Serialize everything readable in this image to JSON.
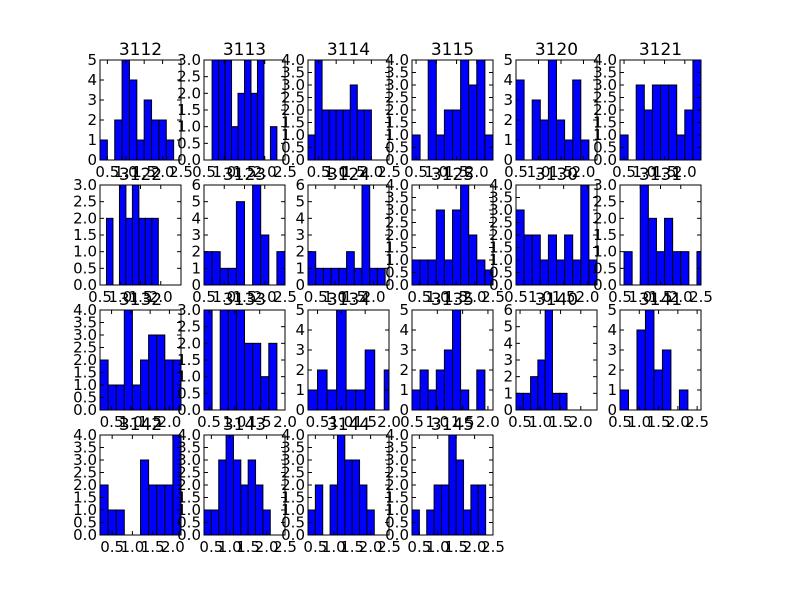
{
  "figure": {
    "bar_color": "#0000ff",
    "edge_color": "#000000",
    "background": "#ffffff"
  },
  "chart_data": [
    {
      "type": "bar",
      "title": "3112",
      "bin_edges": [
        0.3,
        0.5,
        0.7,
        0.9,
        1.1,
        1.3,
        1.5,
        1.7,
        1.9,
        2.1,
        2.3
      ],
      "values": [
        1,
        0,
        2,
        5,
        4,
        1,
        3,
        2,
        2,
        1
      ],
      "ylim": [
        0,
        5
      ],
      "yticks": [
        "0",
        "1",
        "2",
        "3",
        "4",
        "5"
      ],
      "xticks": [
        0.5,
        1.0,
        1.5,
        2.0,
        2.5
      ],
      "xlim": [
        0.3,
        2.5
      ],
      "xtick_text": [
        "0.5",
        "1.0",
        "1.5",
        "2.0",
        "2.5"
      ]
    },
    {
      "type": "bar",
      "title": "3113",
      "bin_edges": [
        0.7,
        0.86,
        1.02,
        1.18,
        1.34,
        1.5,
        1.66,
        1.82,
        1.98,
        2.14,
        2.3
      ],
      "values": [
        3,
        3,
        3,
        1,
        2,
        3,
        2,
        3,
        0,
        1
      ],
      "ylim": [
        0,
        3
      ],
      "yticks": [
        "0.0",
        "0.5",
        "1.0",
        "1.5",
        "2.0",
        "2.5",
        "3.0"
      ],
      "xticks": [
        0.5,
        1.0,
        1.5,
        2.0,
        2.5
      ],
      "xlim": [
        0.5,
        2.5
      ],
      "xtick_text": [
        "0.5",
        "1.0",
        "1.5",
        "2.0",
        "2.5"
      ]
    },
    {
      "type": "bar",
      "title": "3114",
      "bin_edges": [
        0.2,
        0.4,
        0.6,
        0.8,
        1.0,
        1.2,
        1.4,
        1.6,
        1.8,
        2.0,
        2.2
      ],
      "values": [
        1,
        4,
        2,
        2,
        2,
        2,
        3,
        2,
        2,
        0
      ],
      "ylim": [
        0,
        4
      ],
      "yticks": [
        "0.0",
        "0.5",
        "1.0",
        "1.5",
        "2.0",
        "2.5",
        "3.0",
        "3.5",
        "4.0"
      ],
      "xticks": [
        0.5,
        1.0,
        1.5,
        2.0,
        2.5
      ],
      "xlim": [
        0.2,
        2.5
      ],
      "xtick_text": [
        "0.5",
        "1.0",
        "1.5",
        "2.0",
        "2.5"
      ]
    },
    {
      "type": "bar",
      "title": "3115",
      "bin_edges": [
        0.4,
        0.6,
        0.8,
        1.0,
        1.2,
        1.4,
        1.6,
        1.8,
        2.0,
        2.2,
        2.4
      ],
      "values": [
        1,
        0,
        4,
        1,
        2,
        2,
        4,
        3,
        4,
        1
      ],
      "ylim": [
        0,
        4
      ],
      "yticks": [
        "0.0",
        "0.5",
        "1.0",
        "1.5",
        "2.0",
        "2.5",
        "3.0",
        "3.5",
        "4.0"
      ],
      "xticks": [
        0.5,
        1.0,
        1.5,
        2.0,
        2.5
      ],
      "xlim": [
        0.4,
        2.4
      ],
      "xtick_text": [
        "0.5",
        "1.0",
        "1.5",
        "2.0",
        "2.5"
      ]
    },
    {
      "type": "bar",
      "title": "3120",
      "bin_edges": [
        0.5,
        0.68,
        0.86,
        1.04,
        1.22,
        1.4,
        1.58,
        1.76,
        1.94,
        2.12,
        2.3
      ],
      "values": [
        4,
        0,
        3,
        2,
        5,
        2,
        1,
        4,
        1,
        0
      ],
      "ylim": [
        0,
        5
      ],
      "yticks": [
        "0",
        "1",
        "2",
        "3",
        "4",
        "5"
      ],
      "xticks": [
        0.5,
        1.0,
        1.5,
        2.0,
        2.5
      ],
      "xlim": [
        0.5,
        2.3
      ],
      "xtick_text": [
        "0.5",
        "1.0",
        "1.5",
        "2.0",
        "2.5"
      ]
    },
    {
      "type": "bar",
      "title": "3121",
      "bin_edges": [
        0.4,
        0.6,
        0.8,
        1.0,
        1.2,
        1.4,
        1.6,
        1.8,
        2.0,
        2.2,
        2.4
      ],
      "values": [
        1,
        0,
        3,
        2,
        3,
        3,
        3,
        1,
        2,
        4
      ],
      "ylim": [
        0,
        4
      ],
      "yticks": [
        "0.0",
        "0.5",
        "1.0",
        "1.5",
        "2.0",
        "2.5",
        "3.0",
        "3.5",
        "4.0"
      ],
      "xticks": [
        0.5,
        1.0,
        1.5,
        2.0,
        2.5
      ],
      "xlim": [
        0.4,
        2.4
      ],
      "xtick_text": [
        "0.5",
        "1.0",
        "1.5",
        "2.0",
        "2.5"
      ]
    },
    {
      "type": "bar",
      "title": "3122",
      "bin_edges": [
        0.5,
        0.66,
        0.82,
        0.98,
        1.14,
        1.3,
        1.46,
        1.62,
        1.78,
        1.94,
        2.1
      ],
      "values": [
        0,
        2,
        0,
        3,
        2,
        3,
        2,
        2,
        2,
        0
      ],
      "ylim": [
        0,
        3
      ],
      "yticks": [
        "0.0",
        "0.5",
        "1.0",
        "1.5",
        "2.0",
        "2.5",
        "3.0"
      ],
      "xticks": [
        0.5,
        1.0,
        1.5,
        2.0
      ],
      "xlim": [
        0.5,
        2.5
      ],
      "xtick_text": [
        "0.5",
        "1.0",
        "1.5",
        "2.0"
      ]
    },
    {
      "type": "bar",
      "title": "3123",
      "bin_edges": [
        0.5,
        0.7,
        0.9,
        1.1,
        1.3,
        1.5,
        1.7,
        1.9,
        2.1,
        2.3,
        2.5
      ],
      "values": [
        2,
        2,
        1,
        1,
        5,
        0,
        6,
        3,
        0,
        2
      ],
      "ylim": [
        0,
        6
      ],
      "yticks": [
        "0",
        "1",
        "2",
        "3",
        "4",
        "5",
        "6"
      ],
      "xticks": [
        0.5,
        1.0,
        1.5,
        2.0,
        2.5
      ],
      "xlim": [
        0.5,
        2.5
      ],
      "xtick_text": [
        "0.5",
        "1.0",
        "1.5",
        "2.0",
        "2.5"
      ]
    },
    {
      "type": "bar",
      "title": "3124",
      "bin_edges": [
        0.3,
        0.5,
        0.7,
        0.9,
        1.1,
        1.3,
        1.5,
        1.7,
        1.9,
        2.1,
        2.3
      ],
      "values": [
        2,
        1,
        1,
        1,
        1,
        2,
        1,
        6,
        1,
        1
      ],
      "ylim": [
        0,
        6
      ],
      "yticks": [
        "0",
        "1",
        "2",
        "3",
        "4",
        "5",
        "6"
      ],
      "xticks": [
        0.5,
        1.0,
        1.5,
        2.0,
        2.5
      ],
      "xlim": [
        0.3,
        2.4
      ],
      "xtick_text": [
        "0.5",
        "1.0",
        "1.5",
        "2.0",
        "2.5"
      ]
    },
    {
      "type": "bar",
      "title": "3125",
      "bin_edges": [
        0.3,
        0.52,
        0.74,
        0.96,
        1.18,
        1.4,
        1.62,
        1.84,
        2.06,
        2.28,
        2.5
      ],
      "values": [
        1,
        1,
        1,
        3,
        1,
        3,
        4,
        2,
        1,
        0.6
      ],
      "ylim": [
        0,
        4
      ],
      "yticks": [
        "0.0",
        "0.5",
        "1.0",
        "1.5",
        "2.0",
        "2.5",
        "3.0",
        "3.5",
        "4.0"
      ],
      "xticks": [
        0.5,
        1.0,
        1.5,
        2.0,
        2.5
      ],
      "xlim": [
        0.3,
        2.5
      ],
      "xtick_text": [
        "0.5",
        "1.0",
        "1.5",
        "2.0",
        "2.5"
      ]
    },
    {
      "type": "bar",
      "title": "3130",
      "bin_edges": [
        0.5,
        0.67,
        0.84,
        1.01,
        1.18,
        1.35,
        1.52,
        1.69,
        1.86,
        2.03,
        2.2
      ],
      "values": [
        3,
        2,
        2,
        1,
        2,
        1,
        2,
        1,
        4,
        1
      ],
      "ylim": [
        0,
        4
      ],
      "yticks": [
        "0.0",
        "0.5",
        "1.0",
        "1.5",
        "2.0",
        "2.5",
        "3.0",
        "3.5",
        "4.0"
      ],
      "xticks": [
        0.5,
        1.0,
        1.5,
        2.0,
        2.5
      ],
      "xlim": [
        0.5,
        2.2
      ],
      "xtick_text": [
        "0.5",
        "1.0",
        "1.5",
        "2.0",
        "2.5"
      ]
    },
    {
      "type": "bar",
      "title": "3131",
      "bin_edges": [
        0.6,
        0.8,
        1.0,
        1.2,
        1.4,
        1.6,
        1.8,
        2.0,
        2.2,
        2.4,
        2.6
      ],
      "values": [
        1,
        0,
        3,
        2,
        1,
        2,
        1,
        1,
        0,
        1
      ],
      "ylim": [
        0,
        3
      ],
      "yticks": [
        "0.0",
        "0.5",
        "1.0",
        "1.5",
        "2.0",
        "2.5",
        "3.0"
      ],
      "xticks": [
        0.5,
        1.0,
        1.5,
        2.0,
        2.5
      ],
      "xlim": [
        0.5,
        2.5
      ],
      "xtick_text": [
        "0.5",
        "1.0",
        "1.5",
        "2.0",
        "2.5"
      ]
    },
    {
      "type": "bar",
      "title": "3132",
      "bin_edges": [
        0.2,
        0.41,
        0.62,
        0.83,
        1.04,
        1.25,
        1.46,
        1.67,
        1.88,
        2.09,
        2.3
      ],
      "values": [
        2,
        1,
        1,
        4,
        1,
        2,
        3,
        3,
        2,
        2
      ],
      "ylim": [
        0,
        4
      ],
      "yticks": [
        "0.0",
        "0.5",
        "1.0",
        "1.5",
        "2.0",
        "2.5",
        "3.0",
        "3.5",
        "4.0"
      ],
      "xticks": [
        0.5,
        1.0,
        1.5,
        2.0,
        2.5
      ],
      "xlim": [
        0.2,
        2.3
      ],
      "xtick_text": [
        "0.5",
        "1.0",
        "1.5",
        "2.0",
        "2.5"
      ]
    },
    {
      "type": "bar",
      "title": "3133",
      "bin_edges": [
        0.4,
        0.56,
        0.72,
        0.88,
        1.04,
        1.2,
        1.36,
        1.52,
        1.68,
        1.84,
        2.0
      ],
      "values": [
        3,
        0,
        3,
        3,
        3,
        2,
        2,
        1,
        2,
        0
      ],
      "ylim": [
        0,
        3
      ],
      "yticks": [
        "0.0",
        "0.5",
        "1.0",
        "1.5",
        "2.0",
        "2.5",
        "3.0"
      ],
      "xticks": [
        0.5,
        1.0,
        1.5,
        2.0,
        2.5
      ],
      "xlim": [
        0.4,
        2.0
      ],
      "xtick_text": [
        "0.5",
        "1.0",
        "1.5",
        "2.0",
        "2.5"
      ]
    },
    {
      "type": "bar",
      "title": "3134",
      "bin_edges": [
        0.3,
        0.5,
        0.7,
        0.9,
        1.1,
        1.3,
        1.5,
        1.7,
        1.9,
        2.1,
        2.3
      ],
      "values": [
        1,
        2,
        1,
        5,
        1,
        1,
        3,
        0,
        2,
        0
      ],
      "ylim": [
        0,
        5
      ],
      "yticks": [
        "0",
        "1",
        "2",
        "3",
        "4",
        "5"
      ],
      "xticks": [
        0.5,
        1.0,
        1.5,
        2.0,
        2.5
      ],
      "xlim": [
        0.3,
        2.0
      ],
      "xtick_text": [
        "0.5",
        "1.0",
        "1.5",
        "2.0",
        "2.5"
      ]
    },
    {
      "type": "bar",
      "title": "3135",
      "bin_edges": [
        0.5,
        0.66,
        0.82,
        0.98,
        1.14,
        1.3,
        1.46,
        1.62,
        1.78,
        1.94,
        2.1
      ],
      "values": [
        1,
        2,
        1,
        2,
        3,
        5,
        1,
        0,
        2,
        0
      ],
      "ylim": [
        0,
        5
      ],
      "yticks": [
        "0",
        "1",
        "2",
        "3",
        "4",
        "5"
      ],
      "xticks": [
        0.5,
        1.0,
        1.5,
        2.0,
        2.5
      ],
      "xlim": [
        0.5,
        2.1
      ],
      "xtick_text": [
        "0.5",
        "1.0",
        "1.5",
        "2.0",
        "2.5"
      ]
    },
    {
      "type": "bar",
      "title": "3140",
      "bin_edges": [
        0.4,
        0.58,
        0.76,
        0.94,
        1.12,
        1.3,
        1.48,
        1.66,
        1.84,
        2.02,
        2.2
      ],
      "values": [
        1,
        1,
        2,
        3,
        6,
        1,
        1,
        0,
        0,
        0
      ],
      "ylim": [
        0,
        6
      ],
      "yticks": [
        "0",
        "1",
        "2",
        "3",
        "4",
        "5",
        "6"
      ],
      "xticks": [
        0.5,
        1.0,
        1.5,
        2.0,
        2.5
      ],
      "xlim": [
        0.4,
        2.4
      ],
      "xtick_text": [
        "0.5",
        "1.0",
        "1.5",
        "2.0",
        "2.5"
      ]
    },
    {
      "type": "bar",
      "title": "3141",
      "bin_edges": [
        0.5,
        0.72,
        0.94,
        1.16,
        1.38,
        1.6,
        1.82,
        2.04,
        2.26,
        2.48,
        2.7
      ],
      "values": [
        1,
        0,
        4,
        5,
        2,
        3,
        0,
        1,
        0,
        0
      ],
      "ylim": [
        0,
        5
      ],
      "yticks": [
        "0",
        "1",
        "2",
        "3",
        "4",
        "5"
      ],
      "xticks": [
        0.5,
        1.0,
        1.5,
        2.0,
        2.5
      ],
      "xlim": [
        0.5,
        2.6
      ],
      "xtick_text": [
        "0.5",
        "1.0",
        "1.5",
        "2.0",
        "2.5"
      ]
    },
    {
      "type": "bar",
      "title": "3142",
      "bin_edges": [
        0.2,
        0.4,
        0.6,
        0.8,
        1.0,
        1.2,
        1.4,
        1.6,
        1.8,
        2.0,
        2.2
      ],
      "values": [
        2,
        1,
        1,
        0,
        0,
        3,
        2,
        2,
        2,
        4
      ],
      "ylim": [
        0,
        4
      ],
      "yticks": [
        "0.0",
        "0.5",
        "1.0",
        "1.5",
        "2.0",
        "2.5",
        "3.0",
        "3.5",
        "4.0"
      ],
      "xticks": [
        0.5,
        1.0,
        1.5,
        2.0,
        2.5
      ],
      "xlim": [
        0.2,
        2.2
      ],
      "xtick_text": [
        "0.5",
        "1.0",
        "1.5",
        "2.0",
        "2.5"
      ]
    },
    {
      "type": "bar",
      "title": "3143",
      "bin_edges": [
        0.3,
        0.5,
        0.7,
        0.9,
        1.1,
        1.3,
        1.5,
        1.7,
        1.9,
        2.1,
        2.3
      ],
      "values": [
        1,
        1,
        3,
        4,
        3,
        2,
        3,
        2,
        1,
        0
      ],
      "ylim": [
        0,
        4
      ],
      "yticks": [
        "0.0",
        "0.5",
        "1.0",
        "1.5",
        "2.0",
        "2.5",
        "3.0",
        "3.5",
        "4.0"
      ],
      "xticks": [
        0.5,
        1.0,
        1.5,
        2.0,
        2.5
      ],
      "xlim": [
        0.3,
        2.5
      ],
      "xtick_text": [
        "0.5",
        "1.0",
        "1.5",
        "2.0",
        "2.5"
      ]
    },
    {
      "type": "bar",
      "title": "3144",
      "bin_edges": [
        0.3,
        0.5,
        0.7,
        0.9,
        1.1,
        1.3,
        1.5,
        1.7,
        1.9,
        2.1,
        2.3
      ],
      "values": [
        1,
        2,
        0,
        2,
        4,
        3,
        3,
        2,
        1,
        0
      ],
      "ylim": [
        0,
        4
      ],
      "yticks": [
        "0.0",
        "0.5",
        "1.0",
        "1.5",
        "2.0",
        "2.5",
        "3.0",
        "3.5",
        "4.0"
      ],
      "xticks": [
        0.5,
        1.0,
        1.5,
        2.0,
        2.5
      ],
      "xlim": [
        0.3,
        2.5
      ],
      "xtick_text": [
        "0.5",
        "1.0",
        "1.5",
        "2.0",
        "2.5"
      ]
    },
    {
      "type": "bar",
      "title": "3145",
      "bin_edges": [
        0.3,
        0.5,
        0.7,
        0.9,
        1.1,
        1.3,
        1.5,
        1.7,
        1.9,
        2.1,
        2.3
      ],
      "values": [
        1,
        0,
        1,
        2,
        2,
        4,
        3,
        1,
        2,
        2
      ],
      "ylim": [
        0,
        4
      ],
      "yticks": [
        "0.0",
        "0.5",
        "1.0",
        "1.5",
        "2.0",
        "2.5",
        "3.0",
        "3.5",
        "4.0"
      ],
      "xticks": [
        0.5,
        1.0,
        1.5,
        2.0,
        2.5
      ],
      "xlim": [
        0.3,
        2.5
      ],
      "xtick_text": [
        "0.5",
        "1.0",
        "1.5",
        "2.0",
        "2.5"
      ]
    }
  ]
}
